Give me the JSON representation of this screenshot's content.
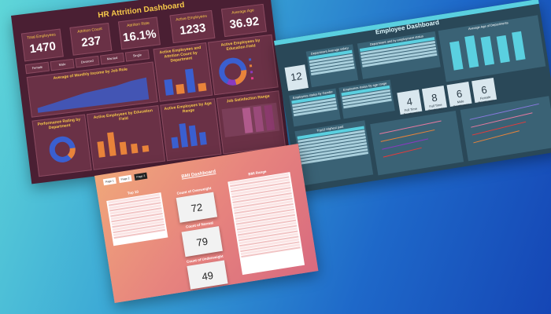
{
  "hr": {
    "title": "HR Attrition Dashboard",
    "kpis": [
      {
        "label": "Total Employees",
        "value": "1470"
      },
      {
        "label": "Attrition Count",
        "value": "237"
      },
      {
        "label": "Attrition Rate",
        "value": "16.1%"
      },
      {
        "label": "Active Employees",
        "value": "1233"
      },
      {
        "label": "Average Age",
        "value": "36.92"
      }
    ],
    "slicers": [
      "Female",
      "Male",
      "Divorced",
      "Married",
      "Single"
    ],
    "panels": {
      "income": "Average of Monthly Income by Job Role",
      "active_dept": "Active Employees and Attrition Count by Department",
      "education_field": "Active Employees by Education Field",
      "performance": "Performance Rating by Department",
      "active_edu": "Active Employees by Education Field",
      "age_range": "Active Employees by Age Range",
      "satisfaction": "Job Satisfaction Range"
    },
    "colors": {
      "bg": "#4a1f33",
      "panel": "#6a3146",
      "accent": "#f7c94a",
      "blue": "#3a5fd0",
      "orange": "#e8833a",
      "purple": "#8a3ac0"
    }
  },
  "employee": {
    "title": "Employee Dashboard",
    "big_number": "12",
    "stats": [
      {
        "value": "4",
        "label": "Full Time Employees"
      },
      {
        "value": "8",
        "label": "Full Time Employees"
      },
      {
        "value": "6",
        "label": "Male Employees"
      },
      {
        "value": "6",
        "label": "Female Employees"
      }
    ],
    "tables": {
      "avg_salary": "Department Average salary",
      "status": "Department and by employment status",
      "gender": "Employees status by Gender",
      "age_range": "Employees status by age range",
      "highest_paid": "Top10 Highest paid",
      "avg_age_dept": "Average Age of Departments"
    }
  },
  "bmi": {
    "title": "BMI Dashboard",
    "tabs": [
      "Page 1",
      "Page 2",
      "Page 3"
    ],
    "top_table_title": "Top 10",
    "bmi_range_title": "BMI Range",
    "metrics": [
      {
        "label": "Count of Overweight",
        "value": "72"
      },
      {
        "label": "Count of Normal",
        "value": "79"
      },
      {
        "label": "Count of Underweight",
        "value": "49"
      }
    ]
  }
}
